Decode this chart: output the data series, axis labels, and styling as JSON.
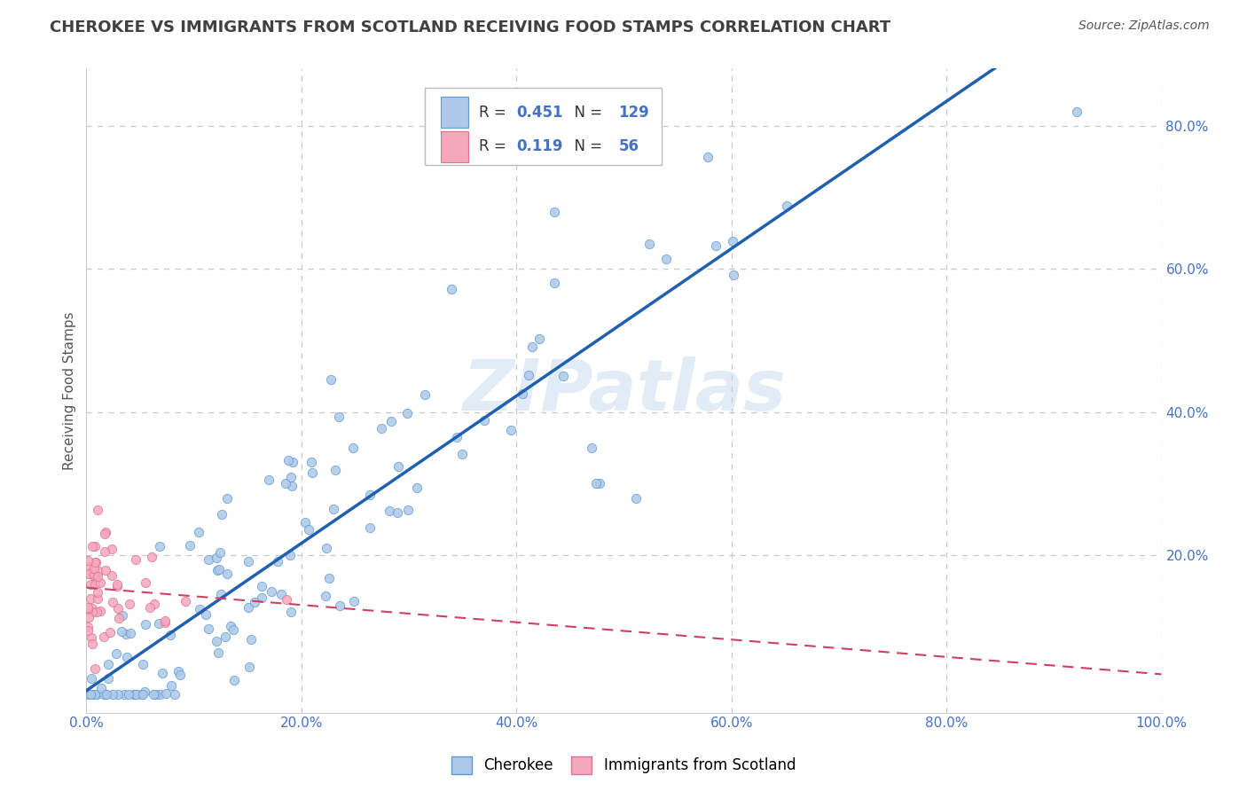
{
  "title": "CHEROKEE VS IMMIGRANTS FROM SCOTLAND RECEIVING FOOD STAMPS CORRELATION CHART",
  "source": "Source: ZipAtlas.com",
  "ylabel": "Receiving Food Stamps",
  "xlim": [
    0.0,
    1.0
  ],
  "ylim": [
    -0.02,
    0.88
  ],
  "xtick_vals": [
    0.0,
    0.2,
    0.4,
    0.6,
    0.8,
    1.0
  ],
  "xtick_labels": [
    "0.0%",
    "20.0%",
    "40.0%",
    "60.0%",
    "80.0%",
    "100.0%"
  ],
  "ytick_vals": [
    0.2,
    0.4,
    0.6,
    0.8
  ],
  "ytick_labels": [
    "20.0%",
    "40.0%",
    "60.0%",
    "80.0%"
  ],
  "legend_labels": [
    "Cherokee",
    "Immigrants from Scotland"
  ],
  "legend_R": [
    0.451,
    0.119
  ],
  "legend_N": [
    129,
    56
  ],
  "cherokee_color": "#adc8e8",
  "scotland_color": "#f4a8bc",
  "cherokee_edge_color": "#5b9bd5",
  "scotland_edge_color": "#e07090",
  "cherokee_line_color": "#2060b0",
  "scotland_line_color": "#d04060",
  "title_color": "#404040",
  "axis_color": "#4472c4",
  "watermark": "ZIPatlas",
  "background_color": "#ffffff",
  "grid_color": "#c8c8c8",
  "grid_style": "--"
}
